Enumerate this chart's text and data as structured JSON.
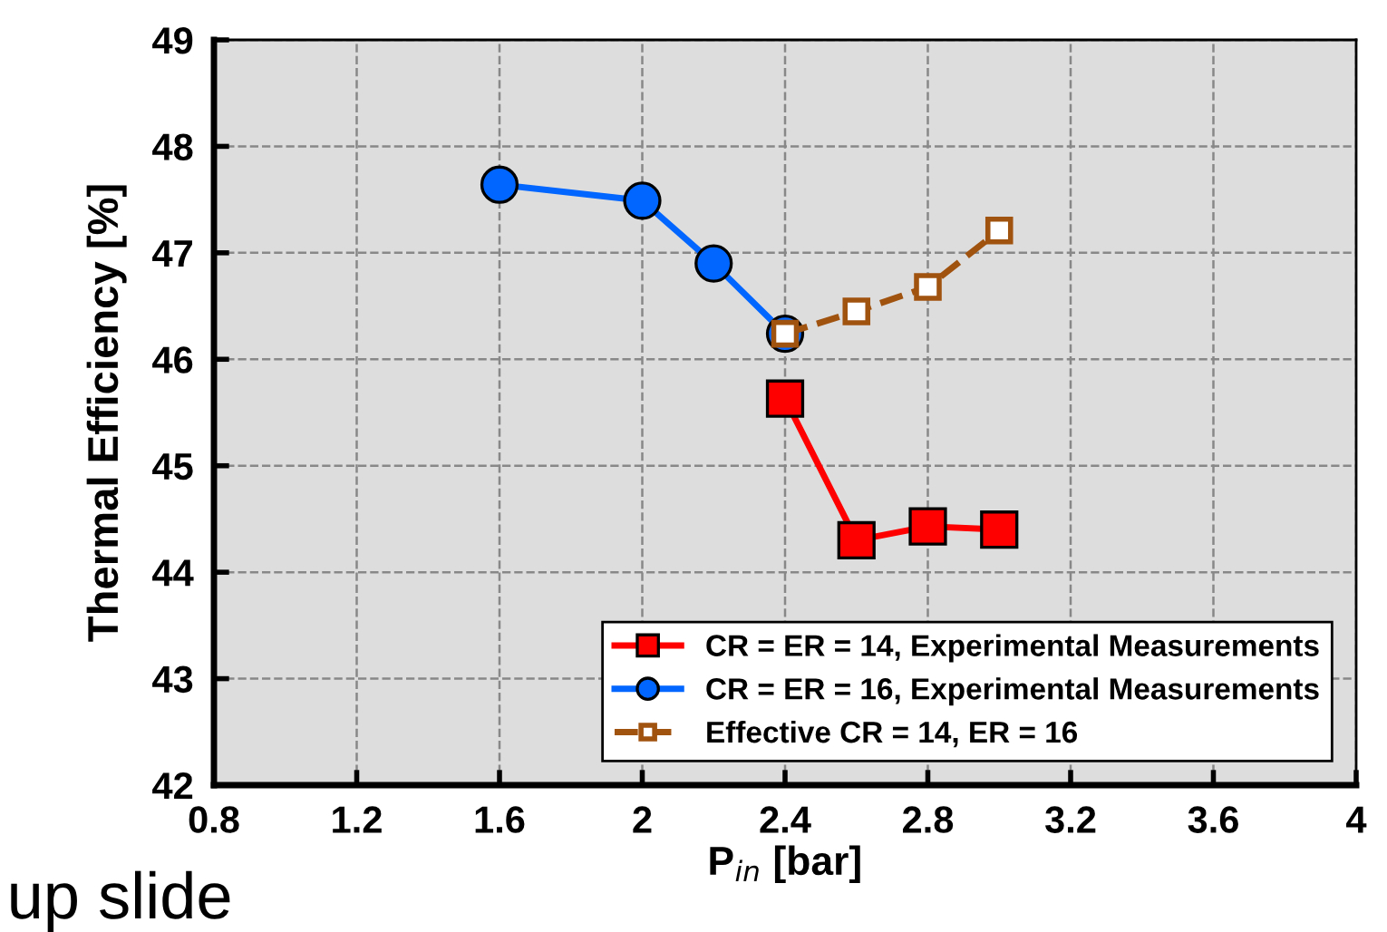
{
  "chart_data": {
    "type": "line",
    "xlabel": "P$_{in}$ [bar]",
    "ylabel": "Thermal Efficiency [%]",
    "xlim": [
      0.8,
      4
    ],
    "xticks": [
      0.8,
      1.2,
      1.6,
      2,
      2.4,
      2.8,
      3.2,
      3.6,
      4
    ],
    "ylim": [
      42,
      49
    ],
    "yticks": [
      42,
      43,
      44,
      45,
      46,
      47,
      48,
      49
    ],
    "grid": true,
    "legend": "bottom right",
    "series": [
      {
        "name": "CR = ER = 14, Experimental Measurements",
        "color": "#ff0000",
        "marker": "square",
        "line_style": "solid",
        "x": [
          2.4,
          2.6,
          2.8,
          3.0
        ],
        "values": [
          45.63,
          44.3,
          44.43,
          44.4
        ]
      },
      {
        "name": "CR = ER = 16, Experimental Measurements",
        "color": "#0066ff",
        "marker": "circle",
        "line_style": "solid",
        "x": [
          1.6,
          2.0,
          2.2,
          2.4
        ],
        "values": [
          47.64,
          47.49,
          46.9,
          46.24
        ]
      },
      {
        "name": "Effective CR = 14, ER = 16",
        "color": "#a0520f",
        "marker": "square",
        "line_style": "dashed",
        "x": [
          2.4,
          2.6,
          2.8,
          3.0
        ],
        "values": [
          46.24,
          46.45,
          46.68,
          47.21
        ]
      }
    ],
    "annotations": [
      "up slide"
    ]
  }
}
